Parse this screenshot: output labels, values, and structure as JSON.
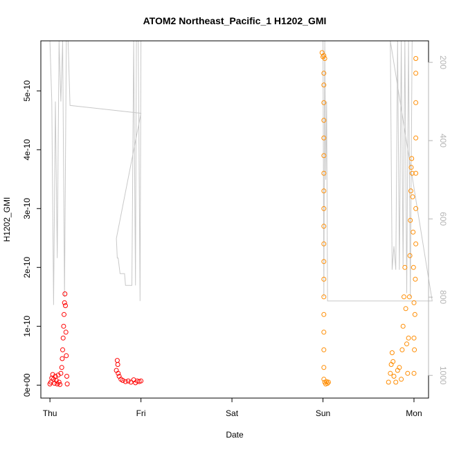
{
  "chart_data": {
    "type": "scatter",
    "title": "ATOM2 Northeast_Pacific_1 H1202_GMI",
    "xlabel": "Date",
    "ylabel": "H1202_GMI",
    "x_ticks": [
      "Thu",
      "Fri",
      "Sat",
      "Sun",
      "Mon"
    ],
    "y_ticks": [
      "0e+00",
      "1e-10",
      "2e-10",
      "3e-10",
      "4e-10",
      "5e-10"
    ],
    "y2_ticks": [
      "200",
      "400",
      "600",
      "800",
      "1000"
    ],
    "xlim": [
      -0.1,
      4.16
    ],
    "ylim": [
      -2.2e-11,
      5.85e-10
    ],
    "y2lim": [
      1058,
      145
    ],
    "grid": false,
    "colors": {
      "early_points": "#ff0000",
      "late_points": "#ff8c00",
      "pressure_line": "#c8c8c8",
      "axis": "#000000",
      "right_axis": "#b4b4b4"
    },
    "series": [
      {
        "role": "measurement points (red)",
        "points": [
          [
            0.0,
            2e-12
          ],
          [
            0.01,
            5e-12
          ],
          [
            0.02,
            1.2e-11
          ],
          [
            0.03,
            1.8e-11
          ],
          [
            0.04,
            1e-11
          ],
          [
            0.05,
            3e-12
          ],
          [
            0.06,
            1.5e-11
          ],
          [
            0.07,
            8e-12
          ],
          [
            0.08,
            2e-12
          ],
          [
            0.09,
            1.7e-11
          ],
          [
            0.1,
            5e-12
          ],
          [
            0.11,
            1e-12
          ],
          [
            0.12,
            2e-11
          ],
          [
            0.13,
            3e-11
          ],
          [
            0.135,
            4.5e-11
          ],
          [
            0.14,
            6e-11
          ],
          [
            0.145,
            8e-11
          ],
          [
            0.15,
            1e-10
          ],
          [
            0.155,
            1.2e-10
          ],
          [
            0.16,
            1.4e-10
          ],
          [
            0.165,
            1.55e-10
          ],
          [
            0.17,
            1.35e-10
          ],
          [
            0.175,
            9e-11
          ],
          [
            0.18,
            5e-11
          ],
          [
            0.185,
            1.5e-11
          ],
          [
            0.19,
            2e-12
          ],
          [
            0.73,
            2.5e-11
          ],
          [
            0.74,
            4.2e-11
          ],
          [
            0.745,
            3.5e-11
          ],
          [
            0.75,
            2e-11
          ],
          [
            0.76,
            1.5e-11
          ],
          [
            0.78,
            1e-11
          ],
          [
            0.8,
            8e-12
          ],
          [
            0.83,
            6e-12
          ],
          [
            0.86,
            7e-12
          ],
          [
            0.89,
            5e-12
          ],
          [
            0.92,
            9e-12
          ],
          [
            0.94,
            4e-12
          ],
          [
            0.96,
            7e-12
          ],
          [
            0.98,
            6e-12
          ],
          [
            1.0,
            7e-12
          ]
        ]
      },
      {
        "role": "measurement points (orange)",
        "points": [
          [
            2.99,
            5.65e-10
          ],
          [
            3.0,
            5.58e-10
          ],
          [
            3.01,
            5.6e-10
          ],
          [
            3.02,
            5.55e-10
          ],
          [
            3.01,
            5.3e-10
          ],
          [
            3.01,
            5.1e-10
          ],
          [
            3.01,
            4.8e-10
          ],
          [
            3.01,
            4.5e-10
          ],
          [
            3.01,
            4.2e-10
          ],
          [
            3.01,
            3.9e-10
          ],
          [
            3.01,
            3.6e-10
          ],
          [
            3.01,
            3.3e-10
          ],
          [
            3.01,
            3e-10
          ],
          [
            3.01,
            2.7e-10
          ],
          [
            3.01,
            2.4e-10
          ],
          [
            3.01,
            2.1e-10
          ],
          [
            3.01,
            1.8e-10
          ],
          [
            3.01,
            1.5e-10
          ],
          [
            3.01,
            1.2e-10
          ],
          [
            3.01,
            9e-11
          ],
          [
            3.01,
            6e-11
          ],
          [
            3.01,
            3e-11
          ],
          [
            3.01,
            1e-11
          ],
          [
            3.02,
            5e-12
          ],
          [
            3.03,
            2e-12
          ],
          [
            3.04,
            6e-12
          ],
          [
            3.05,
            3e-12
          ],
          [
            3.06,
            5e-12
          ],
          [
            3.72,
            5e-12
          ],
          [
            3.74,
            2e-11
          ],
          [
            3.75,
            3.5e-11
          ],
          [
            3.76,
            5.5e-11
          ],
          [
            3.77,
            4e-11
          ],
          [
            3.78,
            1.5e-11
          ],
          [
            3.8,
            5e-12
          ],
          [
            3.82,
            2.5e-11
          ],
          [
            3.84,
            3e-11
          ],
          [
            3.86,
            1e-11
          ],
          [
            3.87,
            6e-11
          ],
          [
            3.88,
            1e-10
          ],
          [
            3.89,
            1.5e-10
          ],
          [
            3.9,
            2e-10
          ],
          [
            3.91,
            1.3e-10
          ],
          [
            3.92,
            7e-11
          ],
          [
            3.93,
            2e-11
          ],
          [
            3.94,
            8e-11
          ],
          [
            3.95,
            1.5e-10
          ],
          [
            3.955,
            2.2e-10
          ],
          [
            3.96,
            2.8e-10
          ],
          [
            3.965,
            3.3e-10
          ],
          [
            3.97,
            3.7e-10
          ],
          [
            3.975,
            3.85e-10
          ],
          [
            3.98,
            3.6e-10
          ],
          [
            3.985,
            3.2e-10
          ],
          [
            3.99,
            2.6e-10
          ],
          [
            3.995,
            2e-10
          ],
          [
            4.0,
            1.4e-10
          ],
          [
            4.0,
            8e-11
          ],
          [
            4.0,
            2e-11
          ],
          [
            4.005,
            6e-11
          ],
          [
            4.01,
            1.2e-10
          ],
          [
            4.015,
            1.8e-10
          ],
          [
            4.02,
            2.4e-10
          ],
          [
            4.02,
            3e-10
          ],
          [
            4.02,
            3.6e-10
          ],
          [
            4.02,
            4.2e-10
          ],
          [
            4.02,
            4.8e-10
          ],
          [
            4.02,
            5.3e-10
          ],
          [
            4.02,
            5.55e-10
          ]
        ]
      },
      {
        "role": "pressure line (right axis)",
        "points": [
          [
            0.0,
            140
          ],
          [
            0.02,
            300
          ],
          [
            0.04,
            820
          ],
          [
            0.06,
            300
          ],
          [
            0.08,
            700
          ],
          [
            0.1,
            140
          ],
          [
            0.12,
            300
          ],
          [
            0.14,
            140
          ],
          [
            0.16,
            800
          ],
          [
            0.18,
            140
          ],
          [
            0.2,
            140
          ],
          [
            0.22,
            310
          ],
          [
            1.0,
            330
          ],
          [
            0.73,
            650
          ],
          [
            0.74,
            700
          ],
          [
            0.75,
            700
          ],
          [
            0.77,
            740
          ],
          [
            0.82,
            740
          ],
          [
            0.83,
            770
          ],
          [
            0.9,
            770
          ],
          [
            0.92,
            140
          ],
          [
            0.94,
            770
          ],
          [
            0.95,
            140
          ],
          [
            0.97,
            140
          ],
          [
            0.99,
            810
          ],
          [
            1.0,
            140
          ],
          [
            3.0,
            140
          ],
          [
            3.01,
            800
          ],
          [
            3.02,
            140
          ],
          [
            3.03,
            500
          ],
          [
            3.04,
            300
          ],
          [
            3.05,
            810
          ],
          [
            4.2,
            810
          ],
          [
            3.74,
            140
          ],
          [
            3.76,
            730
          ],
          [
            3.78,
            670
          ],
          [
            3.8,
            730
          ],
          [
            3.82,
            140
          ],
          [
            3.84,
            730
          ],
          [
            3.86,
            140
          ],
          [
            3.88,
            720
          ],
          [
            3.9,
            140
          ],
          [
            3.92,
            790
          ],
          [
            3.94,
            140
          ],
          [
            3.96,
            800
          ],
          [
            3.98,
            140
          ],
          [
            4.0,
            140
          ]
        ]
      }
    ]
  }
}
